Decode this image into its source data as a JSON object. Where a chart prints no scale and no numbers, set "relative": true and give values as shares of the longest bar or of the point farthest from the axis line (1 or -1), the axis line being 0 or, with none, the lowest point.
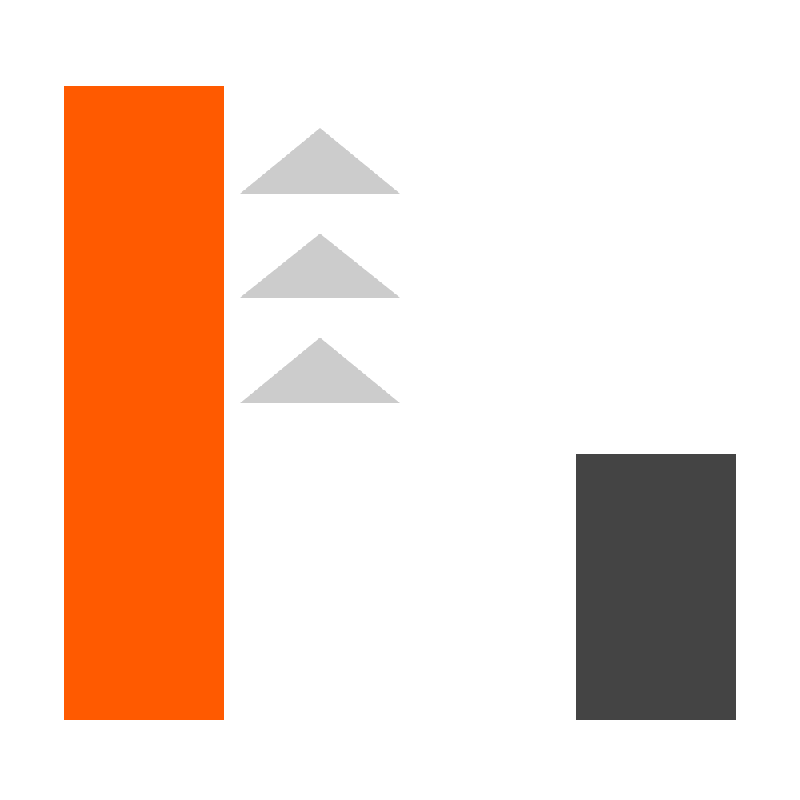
{
  "chart_data": {
    "type": "bar",
    "relative": true,
    "categories": [
      null,
      null
    ],
    "values": [
      1,
      0.42
    ],
    "colors": [
      "#ff5a00",
      "#444444"
    ]
  }
}
